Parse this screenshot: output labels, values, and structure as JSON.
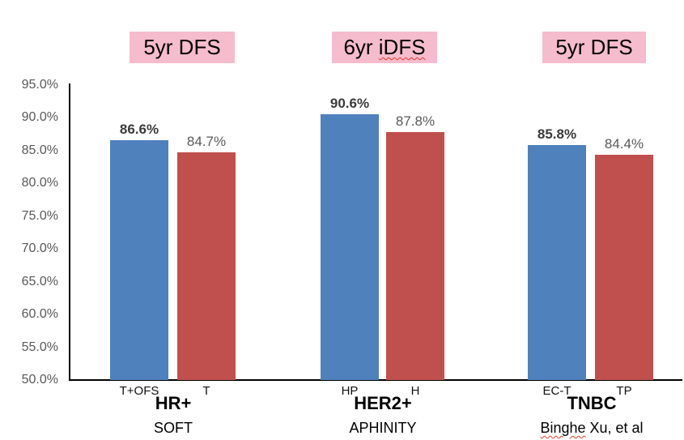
{
  "chart_data": {
    "type": "bar",
    "title": "",
    "xlabel": "",
    "ylabel": "",
    "ylim": [
      50,
      95
    ],
    "ytick_labels": [
      "95.0%",
      "90.0%",
      "85.0%",
      "80.0%",
      "75.0%",
      "70.0%",
      "65.0%",
      "60.0%",
      "55.0%",
      "50.0%"
    ],
    "grid": false,
    "legend_position": "none",
    "colors": {
      "treatment_bar": "#4F81BD",
      "control_bar": "#C0504D",
      "endpoint_box_bg": "#F5BCCD",
      "axis_line": "#000000",
      "tick_text": "#595959",
      "misspell_underline": "#e03a2f"
    },
    "groups": [
      {
        "header": "5yr DFS",
        "group_label": "HR+",
        "trial": "SOFT",
        "bars": [
          {
            "category": "T+OFS",
            "value": 86.6,
            "value_label": "86.6%",
            "series": "treatment",
            "bold": true
          },
          {
            "category": "T",
            "value": 84.7,
            "value_label": "84.7%",
            "series": "control",
            "bold": false
          }
        ]
      },
      {
        "header": "6yr iDFS",
        "header_misspell_underline": "iDFS",
        "group_label": "HER2+",
        "trial": "APHINITY",
        "bars": [
          {
            "category": "HP",
            "value": 90.6,
            "value_label": "90.6%",
            "series": "treatment",
            "bold": true
          },
          {
            "category": "H",
            "value": 87.8,
            "value_label": "87.8%",
            "series": "control",
            "bold": false
          }
        ]
      },
      {
        "header": "5yr DFS",
        "group_label": "TNBC",
        "trial": "Binghe Xu, et al",
        "trial_misspell_underline": "Binghe",
        "bars": [
          {
            "category": "EC-T",
            "value": 85.8,
            "value_label": "85.8%",
            "series": "treatment",
            "bold": true
          },
          {
            "category": "TP",
            "value": 84.4,
            "value_label": "84.4%",
            "series": "control",
            "bold": false
          }
        ]
      }
    ]
  }
}
